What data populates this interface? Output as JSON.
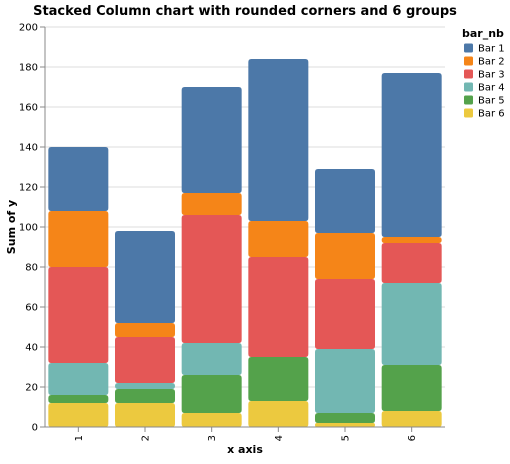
{
  "chart_data": {
    "type": "bar",
    "stacked": true,
    "title": "Stacked Column chart with rounded corners and 6 groups",
    "xlabel": "x axis",
    "ylabel": "Sum of y",
    "ylim": [
      0,
      200
    ],
    "yticks": [
      0,
      20,
      40,
      60,
      80,
      100,
      120,
      140,
      160,
      180,
      200
    ],
    "categories": [
      "1",
      "2",
      "3",
      "4",
      "5",
      "6"
    ],
    "grid": "horizontal",
    "legend": {
      "title": "bar_nb",
      "position": "right"
    },
    "series": [
      {
        "name": "Bar 6",
        "color": "#ECC93F",
        "values": [
          12,
          12,
          7,
          13,
          2,
          8
        ]
      },
      {
        "name": "Bar 5",
        "color": "#54A24B",
        "values": [
          4,
          7,
          19,
          22,
          5,
          23
        ]
      },
      {
        "name": "Bar 4",
        "color": "#72B7B2",
        "values": [
          16,
          3,
          16,
          0,
          32,
          41
        ]
      },
      {
        "name": "Bar 3",
        "color": "#E45756",
        "values": [
          48,
          23,
          64,
          50,
          35,
          20
        ]
      },
      {
        "name": "Bar 2",
        "color": "#F58518",
        "values": [
          28,
          7,
          11,
          18,
          23,
          3
        ]
      },
      {
        "name": "Bar 1",
        "color": "#4C78A8",
        "values": [
          32,
          46,
          53,
          81,
          32,
          82
        ]
      }
    ],
    "legend_order": [
      "Bar 1",
      "Bar 2",
      "Bar 3",
      "Bar 4",
      "Bar 5",
      "Bar 6"
    ]
  }
}
